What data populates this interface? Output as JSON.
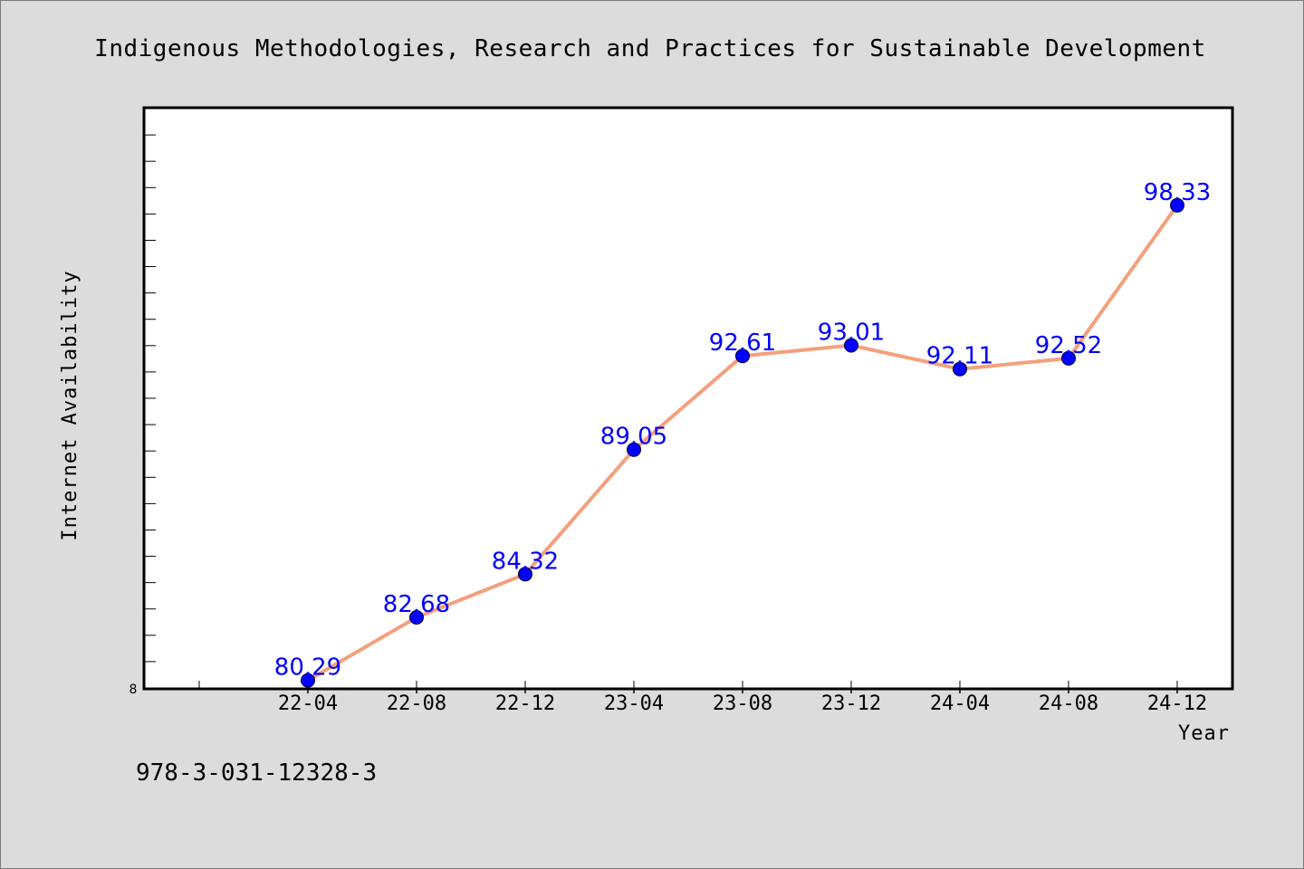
{
  "chart_data": {
    "type": "line",
    "title": "Indigenous Methodologies, Research and Practices for Sustainable Development",
    "xlabel": "Year",
    "ylabel": "Internet Availability",
    "categories": [
      "22-04",
      "22-08",
      "22-12",
      "23-04",
      "23-08",
      "23-12",
      "24-04",
      "24-08",
      "24-12"
    ],
    "series": [
      {
        "values": [
          80.29,
          82.68,
          84.32,
          89.05,
          92.61,
          93.01,
          92.11,
          92.52,
          98.33
        ]
      }
    ],
    "data_labels": [
      "80.29",
      "82.68",
      "84.32",
      "89.05",
      "92.61",
      "93.01",
      "92.11",
      "92.52",
      "98.33"
    ],
    "ylim": [
      80.0,
      102.0
    ],
    "y_tick_label": "8",
    "grid": false,
    "line_color": "#f4a07c",
    "marker_color": "#0000ff",
    "label_color": "#0000ff"
  },
  "footer": {
    "isbn": "978-3-031-12328-3"
  }
}
